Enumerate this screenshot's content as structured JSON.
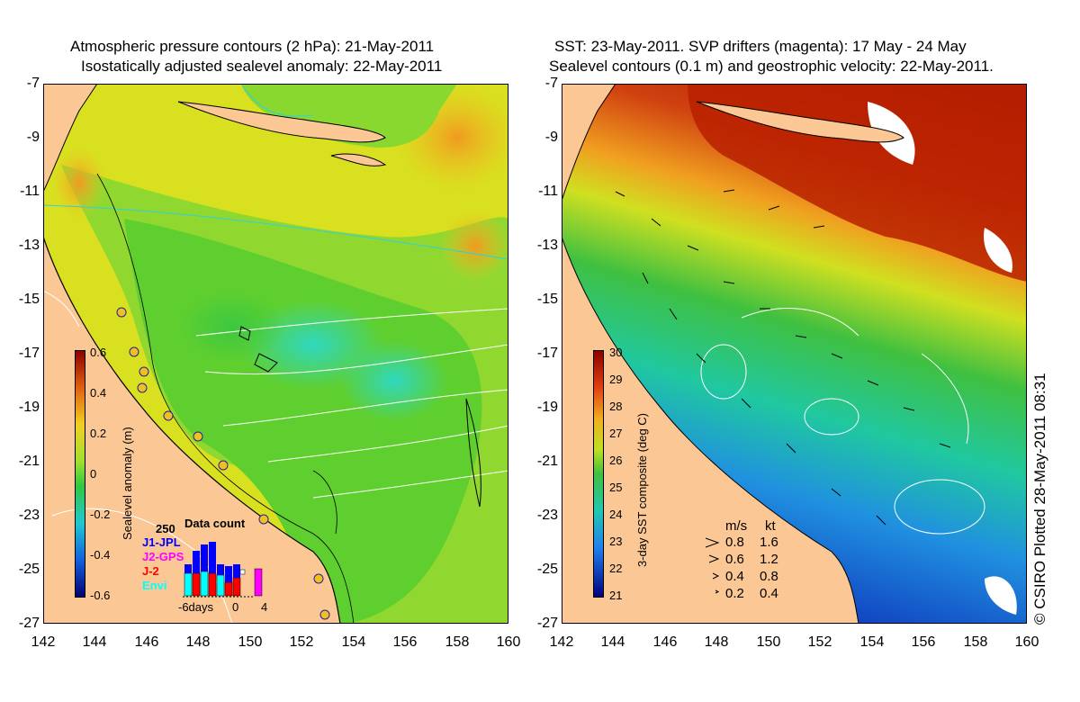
{
  "left_panel": {
    "title_line1": "Atmospheric pressure contours (2 hPa): 21-May-2011",
    "title_line2": "Isostatically adjusted sealevel anomaly: 22-May-2011",
    "y_ticks": [
      "-7",
      "-9",
      "-11",
      "-13",
      "-15",
      "-17",
      "-19",
      "-21",
      "-23",
      "-25",
      "-27"
    ],
    "x_ticks": [
      "142",
      "144",
      "146",
      "148",
      "150",
      "152",
      "154",
      "156",
      "158",
      "160"
    ],
    "colorbar_label": "Sealevel anomaly (m)",
    "colorbar_ticks": [
      "0.6",
      "0.4",
      "0.2",
      "0",
      "-0.2",
      "-0.4",
      "-0.6"
    ],
    "data_count": {
      "title": "Data count",
      "max_label": "250",
      "series": [
        {
          "name": "J1-JPL",
          "color": "#0000ff"
        },
        {
          "name": "J2-GPS",
          "color": "#ff00ff"
        },
        {
          "name": "J-2",
          "color": "#ff0000"
        },
        {
          "name": "Envi",
          "color": "#00ffff"
        }
      ],
      "x_labels": [
        "-6days",
        "0",
        "4"
      ]
    }
  },
  "right_panel": {
    "title_line1": "SST: 23-May-2011. SVP drifters (magenta): 17 May - 24 May",
    "title_line2": "Sealevel contours (0.1 m) and geostrophic velocity: 22-May-2011.",
    "y_ticks": [
      "-7",
      "-9",
      "-11",
      "-13",
      "-15",
      "-17",
      "-19",
      "-21",
      "-23",
      "-25",
      "-27"
    ],
    "x_ticks": [
      "142",
      "144",
      "146",
      "148",
      "150",
      "152",
      "154",
      "156",
      "158",
      "160"
    ],
    "colorbar_label": "3-day SST composite (deg C)",
    "colorbar_ticks": [
      "30",
      "29",
      "28",
      "27",
      "26",
      "25",
      "24",
      "23",
      "22",
      "21"
    ],
    "velocity_legend": {
      "header_ms": "m/s",
      "header_kt": "kt",
      "rows": [
        {
          "ms": "0.8",
          "kt": "1.6"
        },
        {
          "ms": "0.6",
          "kt": "1.2"
        },
        {
          "ms": "0.4",
          "kt": "0.8"
        },
        {
          "ms": "0.2",
          "kt": "0.4"
        }
      ]
    }
  },
  "credit": "© CSIRO Plotted 28-May-2011 08:31",
  "colors": {
    "land": "#fbc895",
    "sla_mid": "#5fcf2f",
    "sla_low": "#30d8b0",
    "sla_high": "#f0d020",
    "sst_warm": "#b02000",
    "sst_cool": "#2080f0"
  }
}
